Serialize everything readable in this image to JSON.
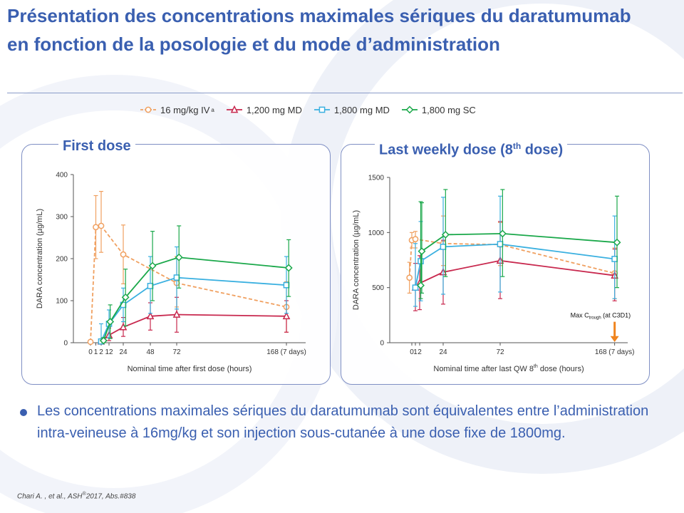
{
  "slide": {
    "title": "Présentation des concentrations maximales sériques du daratumumab en fonction de la posologie et du mode d’administration",
    "bullet": "Les concentrations maximales sériques du daratumumab sont équivalentes entre l’administration intra-veineuse à 16mg/kg et son injection sous-cutanée à une dose fixe de 1800mg.",
    "reference": {
      "main": "Chari A. , et al., ASH",
      "sup": "®",
      "tail": "2017, Abs.#838"
    }
  },
  "legend": {
    "items": [
      {
        "label": "16  mg/kg  IV",
        "sup": "a",
        "color": "#f0a060",
        "marker": "circle",
        "dash": true
      },
      {
        "label": "1,200 mg MD",
        "sup": "",
        "color": "#c8284e",
        "marker": "triangle",
        "dash": false
      },
      {
        "label": "1,800 mg MD",
        "sup": "",
        "color": "#3ab0e0",
        "marker": "square",
        "dash": false
      },
      {
        "label": "1,800 mg  SC",
        "sup": "",
        "color": "#1aa84a",
        "marker": "diamond",
        "dash": false
      }
    ]
  },
  "panels": {
    "left": {
      "title": "First dose",
      "title_sup": ""
    },
    "right": {
      "title": "Last weekly dose (8",
      "title_sup": "th",
      "title_tail": " dose)"
    }
  },
  "chart_data": [
    {
      "type": "line",
      "title": "First dose",
      "xlabel": "Nominal time after first dose (hours)",
      "ylabel": "DARA concentration  (µg/mL)",
      "ylim": [
        0,
        400
      ],
      "xticks": [
        {
          "v": 0,
          "label": "0"
        },
        {
          "v": 1,
          "label": "1"
        },
        {
          "v": 2,
          "label": "2"
        },
        {
          "v": 12,
          "label": "12"
        },
        {
          "v": 24,
          "label": "24"
        },
        {
          "v": 48,
          "label": "48"
        },
        {
          "v": 72,
          "label": "72"
        },
        {
          "v": 168,
          "label": "168 (7 days)"
        }
      ],
      "yticks": [
        {
          "v": 0,
          "label": "0"
        },
        {
          "v": 100,
          "label": "100"
        },
        {
          "v": 200,
          "label": "200"
        },
        {
          "v": 300,
          "label": "300"
        },
        {
          "v": 400,
          "label": "400"
        }
      ],
      "grid": false,
      "legend_position": "top",
      "series": [
        {
          "name": "16  mg/kg  IV",
          "color": "#f0a060",
          "marker": "circle",
          "dash": true,
          "points": [
            {
              "x": 0,
              "y": 2,
              "lo": 0,
              "hi": 5
            },
            {
              "x": 1,
              "y": 275,
              "lo": 200,
              "hi": 350
            },
            {
              "x": 2,
              "y": 278,
              "lo": 215,
              "hi": 360
            },
            {
              "x": 24,
              "y": 210,
              "lo": 140,
              "hi": 280
            },
            {
              "x": 72,
              "y": 142,
              "lo": 85,
              "hi": 205
            },
            {
              "x": 168,
              "y": 85,
              "lo": 25,
              "hi": 145
            }
          ]
        },
        {
          "name": "1,200 mg MD",
          "color": "#c8284e",
          "marker": "triangle",
          "dash": false,
          "points": [
            {
              "x": 2,
              "y": 3,
              "lo": 0,
              "hi": 8
            },
            {
              "x": 12,
              "y": 18,
              "lo": 5,
              "hi": 35
            },
            {
              "x": 24,
              "y": 37,
              "lo": 15,
              "hi": 60
            },
            {
              "x": 48,
              "y": 63,
              "lo": 30,
              "hi": 95
            },
            {
              "x": 72,
              "y": 67,
              "lo": 25,
              "hi": 108
            },
            {
              "x": 168,
              "y": 63,
              "lo": 25,
              "hi": 100
            }
          ]
        },
        {
          "name": "1,800 mg MD",
          "color": "#3ab0e0",
          "marker": "square",
          "dash": false,
          "points": [
            {
              "x": 2,
              "y": 3,
              "lo": 0,
              "hi": 45
            },
            {
              "x": 12,
              "y": 45,
              "lo": 12,
              "hi": 78
            },
            {
              "x": 24,
              "y": 90,
              "lo": 50,
              "hi": 130
            },
            {
              "x": 48,
              "y": 135,
              "lo": 70,
              "hi": 205
            },
            {
              "x": 72,
              "y": 155,
              "lo": 80,
              "hi": 228
            },
            {
              "x": 168,
              "y": 137,
              "lo": 70,
              "hi": 205
            }
          ]
        },
        {
          "name": "1,800 mg  SC",
          "color": "#1aa84a",
          "marker": "diamond",
          "dash": false,
          "points": [
            {
              "x": 5,
              "y": 5,
              "lo": 0,
              "hi": 12
            },
            {
              "x": 13,
              "y": 50,
              "lo": 10,
              "hi": 90
            },
            {
              "x": 26,
              "y": 108,
              "lo": 40,
              "hi": 175
            },
            {
              "x": 50,
              "y": 183,
              "lo": 100,
              "hi": 265
            },
            {
              "x": 74,
              "y": 203,
              "lo": 130,
              "hi": 278
            },
            {
              "x": 170,
              "y": 178,
              "lo": 110,
              "hi": 245
            }
          ]
        }
      ]
    },
    {
      "type": "line",
      "title": "Last weekly dose (8th dose)",
      "xlabel": "Nominal time after last QW 8",
      "xlabel_sup": "th",
      "xlabel_tail": " dose (hours)",
      "ylabel": "DARA concentration  (µg/mL)",
      "ylim": [
        0,
        1500
      ],
      "xticks": [
        {
          "v": 0,
          "label": "0"
        },
        {
          "v": 1,
          "label": "1"
        },
        {
          "v": 2,
          "label": "2"
        },
        {
          "v": 24,
          "label": "24"
        },
        {
          "v": 72,
          "label": "72"
        },
        {
          "v": 168,
          "label": "168 (7 days)"
        }
      ],
      "yticks": [
        {
          "v": 0,
          "label": "0"
        },
        {
          "v": 500,
          "label": "500"
        },
        {
          "v": 1000,
          "label": "1000"
        },
        {
          "v": 1500,
          "label": "1500"
        }
      ],
      "grid": false,
      "annotation": {
        "prefix": "Max  C",
        "sub": "trough",
        "suffix": " (at C3D1)",
        "x": 168
      },
      "series": [
        {
          "name": "16  mg/kg  IV",
          "color": "#f0a060",
          "marker": "circle",
          "dash": true,
          "points": [
            {
              "x": -2,
              "y": 590,
              "lo": 450,
              "hi": 730
            },
            {
              "x": 0,
              "y": 930,
              "lo": 860,
              "hi": 1000
            },
            {
              "x": 1,
              "y": 940,
              "lo": 860,
              "hi": 1010
            },
            {
              "x": 24,
              "y": 900,
              "lo": 700,
              "hi": 1150
            },
            {
              "x": 72,
              "y": 890,
              "lo": 700,
              "hi": 1090
            },
            {
              "x": 168,
              "y": 630,
              "lo": 400,
              "hi": 860
            }
          ]
        },
        {
          "name": "1,200 mg MD",
          "color": "#c8284e",
          "marker": "triangle",
          "dash": false,
          "points": [
            {
              "x": 1,
              "y": 500,
              "lo": 290,
              "hi": 720
            },
            {
              "x": 2,
              "y": 540,
              "lo": 300,
              "hi": 790
            },
            {
              "x": 24,
              "y": 640,
              "lo": 350,
              "hi": 930
            },
            {
              "x": 72,
              "y": 745,
              "lo": 400,
              "hi": 1100
            },
            {
              "x": 168,
              "y": 610,
              "lo": 380,
              "hi": 850
            }
          ]
        },
        {
          "name": "1,800 mg MD",
          "color": "#3ab0e0",
          "marker": "square",
          "dash": false,
          "points": [
            {
              "x": 1,
              "y": 500,
              "lo": 330,
              "hi": 900
            },
            {
              "x": 3,
              "y": 740,
              "lo": 380,
              "hi": 1100
            },
            {
              "x": 24,
              "y": 870,
              "lo": 440,
              "hi": 1320
            },
            {
              "x": 72,
              "y": 895,
              "lo": 460,
              "hi": 1330
            },
            {
              "x": 168,
              "y": 760,
              "lo": 400,
              "hi": 1150
            }
          ]
        },
        {
          "name": "1,800 mg  SC",
          "color": "#1aa84a",
          "marker": "diamond",
          "dash": false,
          "points": [
            {
              "x": 3,
              "y": 520,
              "lo": 400,
              "hi": 1280
            },
            {
              "x": 4,
              "y": 830,
              "lo": 450,
              "hi": 1270
            },
            {
              "x": 26,
              "y": 980,
              "lo": 600,
              "hi": 1390
            },
            {
              "x": 74,
              "y": 990,
              "lo": 600,
              "hi": 1390
            },
            {
              "x": 170,
              "y": 910,
              "lo": 500,
              "hi": 1330
            }
          ]
        }
      ]
    }
  ]
}
